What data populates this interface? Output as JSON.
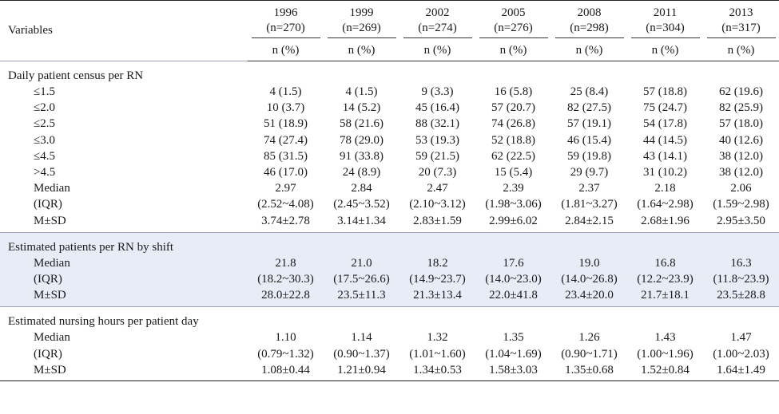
{
  "header": {
    "variables_label": "Variables",
    "years": [
      {
        "year": "1996",
        "n": "(n=270)"
      },
      {
        "year": "1999",
        "n": "(n=269)"
      },
      {
        "year": "2002",
        "n": "(n=274)"
      },
      {
        "year": "2005",
        "n": "(n=276)"
      },
      {
        "year": "2008",
        "n": "(n=298)"
      },
      {
        "year": "2011",
        "n": "(n=304)"
      },
      {
        "year": "2013",
        "n": "(n=317)"
      }
    ],
    "unit_label": "n (%)"
  },
  "sections": [
    {
      "title": "Daily patient census per RN",
      "rows": [
        {
          "label": "≤1.5",
          "values": [
            "4 (1.5)",
            "4 (1.5)",
            "9 (3.3)",
            "16 (5.8)",
            "25 (8.4)",
            "57 (18.8)",
            "62 (19.6)"
          ]
        },
        {
          "label": "≤2.0",
          "values": [
            "10 (3.7)",
            "14 (5.2)",
            "45 (16.4)",
            "57 (20.7)",
            "82 (27.5)",
            "75 (24.7)",
            "82 (25.9)"
          ]
        },
        {
          "label": "≤2.5",
          "values": [
            "51 (18.9)",
            "58 (21.6)",
            "88 (32.1)",
            "74 (26.8)",
            "57 (19.1)",
            "54 (17.8)",
            "57 (18.0)"
          ]
        },
        {
          "label": "≤3.0",
          "values": [
            "74 (27.4)",
            "78 (29.0)",
            "53 (19.3)",
            "52 (18.8)",
            "46 (15.4)",
            "44 (14.5)",
            "40 (12.6)"
          ]
        },
        {
          "label": "≤4.5",
          "values": [
            "85 (31.5)",
            "91 (33.8)",
            "59 (21.5)",
            "62 (22.5)",
            "59 (19.8)",
            "43 (14.1)",
            "38 (12.0)"
          ]
        },
        {
          "label": ">4.5",
          "values": [
            "46 (17.0)",
            "24 (8.9)",
            "20 (7.3)",
            "15 (5.4)",
            "29 (9.7)",
            "31 (10.2)",
            "38 (12.0)"
          ]
        },
        {
          "label": "Median",
          "values": [
            "2.97",
            "2.84",
            "2.47",
            "2.39",
            "2.37",
            "2.18",
            "2.06"
          ]
        },
        {
          "label": "(IQR)",
          "values": [
            "(2.52~4.08)",
            "(2.45~3.52)",
            "(2.10~3.12)",
            "(1.98~3.06)",
            "(1.81~3.27)",
            "(1.64~2.98)",
            "(1.59~2.98)"
          ]
        },
        {
          "label": "M±SD",
          "values": [
            "3.74±2.78",
            "3.14±1.34",
            "2.83±1.59",
            "2.99±6.02",
            "2.84±2.15",
            "2.68±1.96",
            "2.95±3.50"
          ]
        }
      ]
    },
    {
      "title": "Estimated patients per RN by shift",
      "rows": [
        {
          "label": "Median",
          "values": [
            "21.8",
            "21.0",
            "18.2",
            "17.6",
            "19.0",
            "16.8",
            "16.3"
          ]
        },
        {
          "label": "(IQR)",
          "values": [
            "(18.2~30.3)",
            "(17.5~26.6)",
            "(14.9~23.7)",
            "(14.0~23.0)",
            "(14.0~26.8)",
            "(12.2~23.9)",
            "(11.8~23.9)"
          ]
        },
        {
          "label": "M±SD",
          "values": [
            "28.0±22.8",
            "23.5±11.3",
            "21.3±13.4",
            "22.0±41.8",
            "23.4±20.0",
            "21.7±18.1",
            "23.5±28.8"
          ]
        }
      ]
    },
    {
      "title": "Estimated nursing hours per patient day",
      "rows": [
        {
          "label": "Median",
          "values": [
            "1.10",
            "1.14",
            "1.32",
            "1.35",
            "1.26",
            "1.43",
            "1.47"
          ]
        },
        {
          "label": "(IQR)",
          "values": [
            "(0.79~1.32)",
            "(0.90~1.37)",
            "(1.01~1.60)",
            "(1.04~1.69)",
            "(0.90~1.71)",
            "(1.00~1.96)",
            "(1.00~2.03)"
          ]
        },
        {
          "label": "M±SD",
          "values": [
            "1.08±0.44",
            "1.21±0.94",
            "1.34±0.53",
            "1.58±3.03",
            "1.35±0.68",
            "1.52±0.84",
            "1.64±1.49"
          ]
        }
      ]
    }
  ],
  "colors": {
    "shade": "#e8ecf7",
    "rule": "#222222",
    "text": "#1a1a1a"
  }
}
